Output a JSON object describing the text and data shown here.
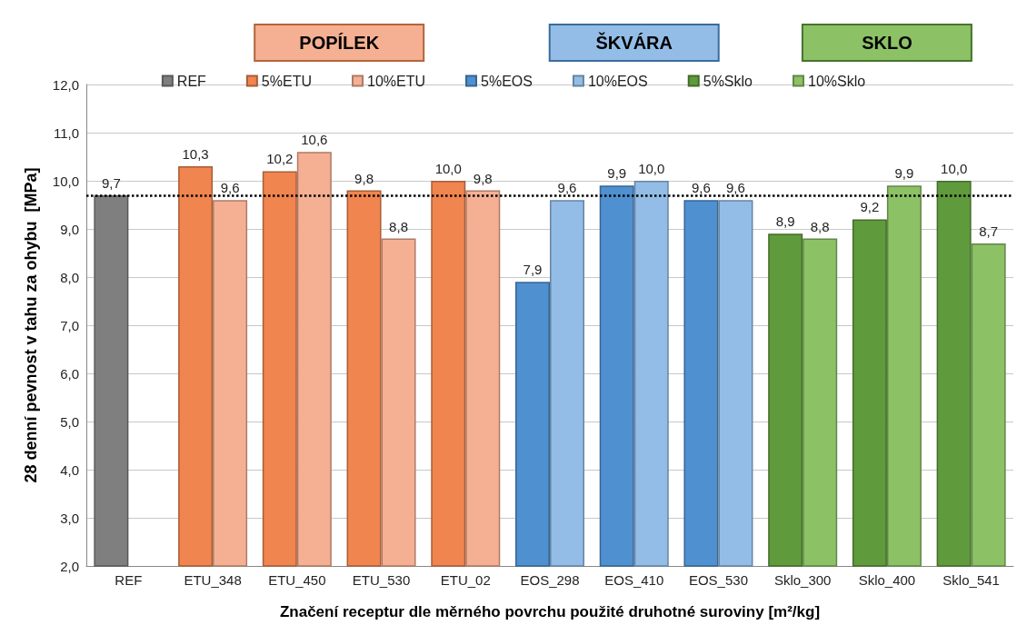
{
  "chart_data": {
    "type": "bar",
    "ylabel": "28 denní pevnost v tahu za ohybu  [MPa]",
    "xlabel": "Značení receptur dle měrného povrchu použité druhotné suroviny [m²/kg]",
    "annotations": [
      "POPÍLEK",
      "ŠKVÁRA",
      "SKLO"
    ],
    "categories": [
      "REF",
      "ETU_348",
      "ETU_450",
      "ETU_530",
      "ETU_02",
      "EOS_298",
      "EOS_410",
      "EOS_530",
      "Sklo_300",
      "Sklo_400",
      "Sklo_541"
    ],
    "series": [
      {
        "name": "REF",
        "color": "#7f7f7f",
        "values": [
          9.7,
          null,
          null,
          null,
          null,
          null,
          null,
          null,
          null,
          null,
          null
        ],
        "value_labels": [
          "9,7",
          null,
          null,
          null,
          null,
          null,
          null,
          null,
          null,
          null,
          null
        ]
      },
      {
        "name": "5%ETU",
        "color": "#f0854f",
        "values": [
          null,
          10.3,
          10.2,
          9.8,
          10.0,
          null,
          null,
          null,
          null,
          null,
          null
        ],
        "value_labels": [
          null,
          "10,3",
          "10,2",
          "9,8",
          "10,0",
          null,
          null,
          null,
          null,
          null,
          null
        ]
      },
      {
        "name": "10%ETU",
        "color": "#f5b093",
        "values": [
          null,
          9.6,
          10.6,
          8.8,
          9.8,
          null,
          null,
          null,
          null,
          null,
          null
        ],
        "value_labels": [
          null,
          "9,6",
          "10,6",
          "8,8",
          "9,8",
          null,
          null,
          null,
          null,
          null,
          null
        ]
      },
      {
        "name": "5%EOS",
        "color": "#4f90d0",
        "values": [
          null,
          null,
          null,
          null,
          null,
          7.9,
          9.9,
          9.6,
          null,
          null,
          null
        ],
        "value_labels": [
          null,
          null,
          null,
          null,
          null,
          "7,9",
          "9,9",
          "9,6",
          null,
          null,
          null
        ]
      },
      {
        "name": "10%EOS",
        "color": "#93bde6",
        "values": [
          null,
          null,
          null,
          null,
          null,
          9.6,
          10.0,
          9.6,
          null,
          null,
          null
        ],
        "value_labels": [
          null,
          null,
          null,
          null,
          null,
          "9,6",
          "10,0",
          "9,6",
          null,
          null,
          null
        ]
      },
      {
        "name": "5%Sklo",
        "color": "#5f9a3c",
        "values": [
          null,
          null,
          null,
          null,
          null,
          null,
          null,
          null,
          8.9,
          9.2,
          10.0
        ],
        "value_labels": [
          null,
          null,
          null,
          null,
          null,
          null,
          null,
          null,
          "8,9",
          "9,2",
          "10,0"
        ]
      },
      {
        "name": "10%Sklo",
        "color": "#8cc166",
        "values": [
          null,
          null,
          null,
          null,
          null,
          null,
          null,
          null,
          8.8,
          9.9,
          8.7
        ],
        "value_labels": [
          null,
          null,
          null,
          null,
          null,
          null,
          null,
          null,
          "8,8",
          "9,9",
          "8,7"
        ]
      }
    ],
    "ylim": [
      2,
      12
    ],
    "yticks": [
      {
        "value": 2,
        "label": "2,0"
      },
      {
        "value": 3,
        "label": "3,0"
      },
      {
        "value": 4,
        "label": "4,0"
      },
      {
        "value": 5,
        "label": "5,0"
      },
      {
        "value": 6,
        "label": "6,0"
      },
      {
        "value": 7,
        "label": "7,0"
      },
      {
        "value": 8,
        "label": "8,0"
      },
      {
        "value": 9,
        "label": "9,0"
      },
      {
        "value": 10,
        "label": "10,0"
      },
      {
        "value": 11,
        "label": "11,0"
      },
      {
        "value": 12,
        "label": "12,0"
      }
    ],
    "ref_lines": [
      {
        "axis": "y",
        "value": 9.7,
        "color": "#000000",
        "line_style": "dotted"
      }
    ],
    "grid": "y",
    "legend": "top"
  }
}
